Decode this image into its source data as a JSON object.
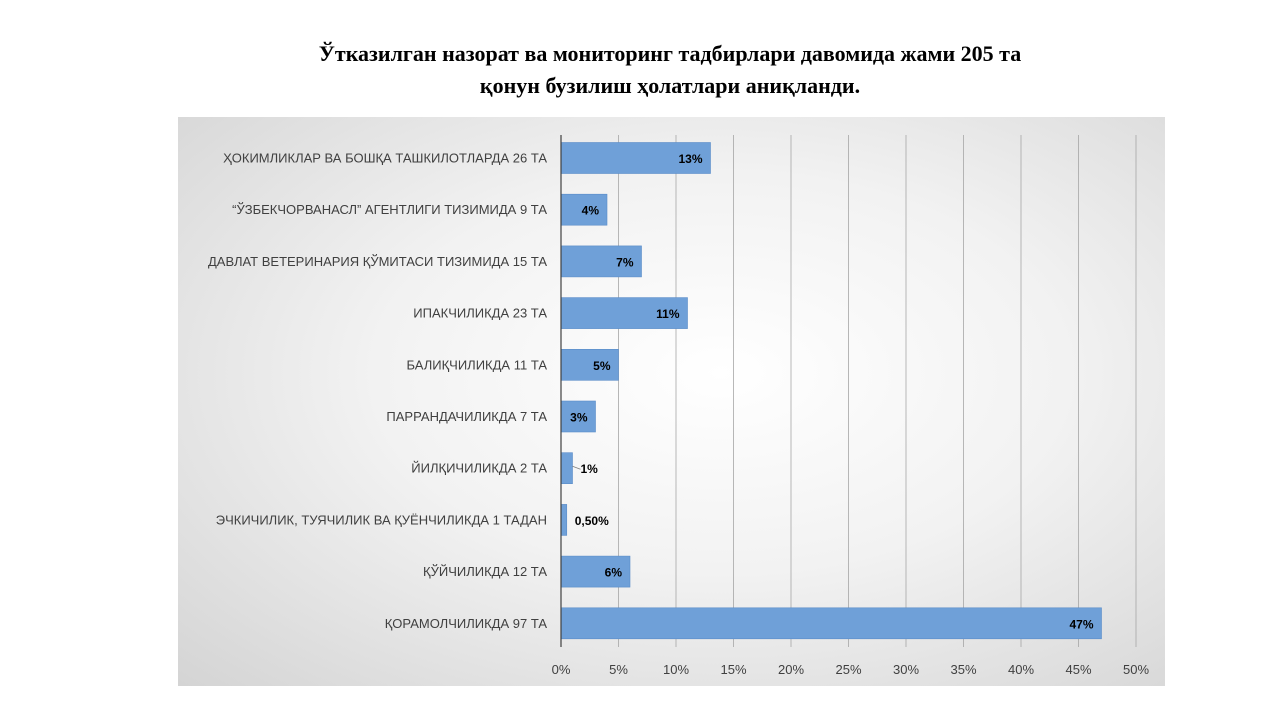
{
  "title_lines": [
    "Ўтказилган назорат ва мониторинг тадбирлари давомида жами 205 та",
    "қонун бузилиш ҳолатлари аниқланди."
  ],
  "chart_data": {
    "type": "bar",
    "orientation": "horizontal",
    "title": "",
    "xlabel": "",
    "ylabel": "",
    "categories": [
      "ҲОКИМЛИКЛАР ВА БОШҚА ТАШКИЛОТЛАРДА 26 ТА",
      "“ЎЗБЕКЧОРВАНАСЛ” АГЕНТЛИГИ ТИЗИМИДА 9 ТА",
      "ДАВЛАТ ВЕТЕРИНАРИЯ ҚЎМИТАСИ ТИЗИМИДА 15 ТА",
      "ИПАКЧИЛИКДА 23 ТА",
      "БАЛИҚЧИЛИКДА 11 ТА",
      "ПАРРАНДАЧИЛИКДА 7 ТА",
      "ЙИЛҚИЧИЛИКДА 2 ТА",
      "ЭЧКИЧИЛИК, ТУЯЧИЛИК ВА ҚУЁНЧИЛИКДА 1 ТАДАН",
      "ҚЎЙЧИЛИКДА 12 ТА",
      "ҚОРАМОЛЧИЛИКДА 97 ТА"
    ],
    "values": [
      13,
      4,
      7,
      11,
      5,
      3,
      1,
      0.5,
      6,
      47
    ],
    "data_labels": [
      "13%",
      "4%",
      "7%",
      "11%",
      "5%",
      "3%",
      "1%",
      "0,50%",
      "6%",
      "47%"
    ],
    "x_ticks": [
      "0%",
      "5%",
      "10%",
      "15%",
      "20%",
      "25%",
      "30%",
      "35%",
      "40%",
      "45%",
      "50%"
    ],
    "xlim": [
      0,
      50
    ],
    "grid": true,
    "bar_color": "#6fa0d8",
    "bar_border_color": "#5b8cc8"
  }
}
